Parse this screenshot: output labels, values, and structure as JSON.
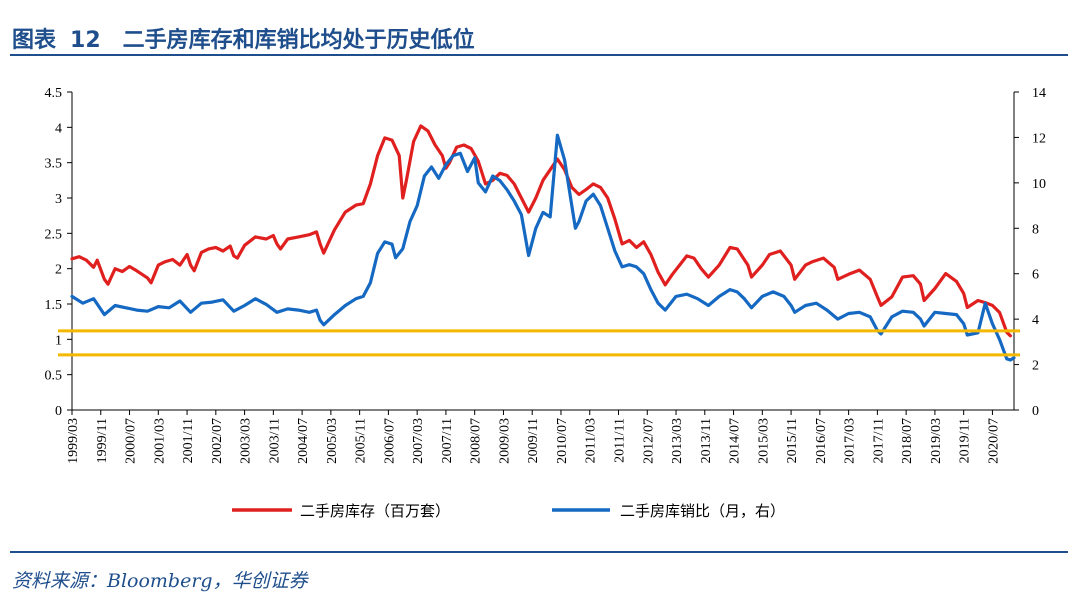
{
  "header": {
    "label": "图表",
    "number": "12",
    "title": "二手房库存和库销比均处于历史低位"
  },
  "footer": {
    "source": "资料来源：Bloomberg，华创证券"
  },
  "colors": {
    "inventory": "#e0201f",
    "ratio": "#1569c2",
    "reference": "#f5b800",
    "accent": "#1f4e8c"
  },
  "chart_data": {
    "type": "line",
    "title": "二手房库存和库销比均处于历史低位",
    "x_tick_labels": [
      "1999/03",
      "1999/11",
      "2000/07",
      "2001/03",
      "2001/11",
      "2002/07",
      "2003/03",
      "2003/11",
      "2004/07",
      "2005/03",
      "2005/11",
      "2006/07",
      "2007/03",
      "2007/11",
      "2008/07",
      "2009/03",
      "2009/11",
      "2010/07",
      "2011/03",
      "2011/11",
      "2012/07",
      "2013/03",
      "2013/11",
      "2014/07",
      "2015/03",
      "2015/11",
      "2016/07",
      "2017/03",
      "2017/11",
      "2018/07",
      "2019/03",
      "2019/11",
      "2020/07"
    ],
    "x_range": [
      "1999/03",
      "2021/01"
    ],
    "y_left": {
      "min": 0,
      "max": 4.5,
      "ticks": [
        "0",
        "0.5",
        "1",
        "1.5",
        "2",
        "2.5",
        "3",
        "3.5",
        "4",
        "4.5"
      ]
    },
    "y_right": {
      "min": 0,
      "max": 14,
      "ticks": [
        "0",
        "2",
        "4",
        "6",
        "8",
        "10",
        "12",
        "14"
      ]
    },
    "reference_lines_left": [
      1.12,
      0.78
    ],
    "series": [
      {
        "name": "二手房库存（百万套）",
        "axis": "left",
        "points": [
          [
            "1999/03",
            2.14
          ],
          [
            "1999/05",
            2.17
          ],
          [
            "1999/07",
            2.12
          ],
          [
            "1999/09",
            2.02
          ],
          [
            "1999/10",
            2.12
          ],
          [
            "1999/12",
            1.85
          ],
          [
            "2000/01",
            1.78
          ],
          [
            "2000/03",
            2.0
          ],
          [
            "2000/05",
            1.96
          ],
          [
            "2000/07",
            2.03
          ],
          [
            "2000/09",
            1.97
          ],
          [
            "2000/12",
            1.87
          ],
          [
            "2001/01",
            1.8
          ],
          [
            "2001/03",
            2.05
          ],
          [
            "2001/05",
            2.1
          ],
          [
            "2001/07",
            2.13
          ],
          [
            "2001/09",
            2.05
          ],
          [
            "2001/11",
            2.2
          ],
          [
            "2001/12",
            2.05
          ],
          [
            "2002/01",
            1.97
          ],
          [
            "2002/03",
            2.23
          ],
          [
            "2002/05",
            2.28
          ],
          [
            "2002/07",
            2.3
          ],
          [
            "2002/09",
            2.25
          ],
          [
            "2002/11",
            2.32
          ],
          [
            "2002/12",
            2.18
          ],
          [
            "2003/01",
            2.15
          ],
          [
            "2003/03",
            2.33
          ],
          [
            "2003/06",
            2.45
          ],
          [
            "2003/09",
            2.42
          ],
          [
            "2003/11",
            2.47
          ],
          [
            "2003/12",
            2.35
          ],
          [
            "2004/01",
            2.28
          ],
          [
            "2004/03",
            2.42
          ],
          [
            "2004/06",
            2.45
          ],
          [
            "2004/09",
            2.48
          ],
          [
            "2004/11",
            2.52
          ],
          [
            "2004/12",
            2.35
          ],
          [
            "2005/01",
            2.22
          ],
          [
            "2005/04",
            2.55
          ],
          [
            "2005/07",
            2.8
          ],
          [
            "2005/10",
            2.9
          ],
          [
            "2005/12",
            2.92
          ],
          [
            "2006/02",
            3.2
          ],
          [
            "2006/04",
            3.6
          ],
          [
            "2006/06",
            3.85
          ],
          [
            "2006/08",
            3.82
          ],
          [
            "2006/10",
            3.6
          ],
          [
            "2006/11",
            3.0
          ],
          [
            "2006/12",
            3.25
          ],
          [
            "2007/02",
            3.8
          ],
          [
            "2007/04",
            4.02
          ],
          [
            "2007/06",
            3.95
          ],
          [
            "2007/08",
            3.75
          ],
          [
            "2007/10",
            3.6
          ],
          [
            "2007/11",
            3.42
          ],
          [
            "2007/12",
            3.5
          ],
          [
            "2008/02",
            3.72
          ],
          [
            "2008/04",
            3.75
          ],
          [
            "2008/06",
            3.7
          ],
          [
            "2008/08",
            3.52
          ],
          [
            "2008/10",
            3.2
          ],
          [
            "2008/12",
            3.25
          ],
          [
            "2009/02",
            3.35
          ],
          [
            "2009/04",
            3.32
          ],
          [
            "2009/06",
            3.2
          ],
          [
            "2009/08",
            3.0
          ],
          [
            "2009/10",
            2.8
          ],
          [
            "2009/12",
            3.0
          ],
          [
            "2010/02",
            3.25
          ],
          [
            "2010/04",
            3.4
          ],
          [
            "2010/06",
            3.55
          ],
          [
            "2010/08",
            3.4
          ],
          [
            "2010/10",
            3.15
          ],
          [
            "2010/12",
            3.05
          ],
          [
            "2011/02",
            3.12
          ],
          [
            "2011/04",
            3.2
          ],
          [
            "2011/06",
            3.15
          ],
          [
            "2011/08",
            3.0
          ],
          [
            "2011/10",
            2.7
          ],
          [
            "2011/12",
            2.35
          ],
          [
            "2012/02",
            2.4
          ],
          [
            "2012/04",
            2.3
          ],
          [
            "2012/06",
            2.38
          ],
          [
            "2012/08",
            2.2
          ],
          [
            "2012/10",
            1.95
          ],
          [
            "2012/12",
            1.77
          ],
          [
            "2013/02",
            1.92
          ],
          [
            "2013/04",
            2.05
          ],
          [
            "2013/06",
            2.18
          ],
          [
            "2013/08",
            2.15
          ],
          [
            "2013/10",
            2.0
          ],
          [
            "2013/12",
            1.88
          ],
          [
            "2014/03",
            2.05
          ],
          [
            "2014/06",
            2.3
          ],
          [
            "2014/08",
            2.28
          ],
          [
            "2014/11",
            2.05
          ],
          [
            "2014/12",
            1.88
          ],
          [
            "2015/03",
            2.05
          ],
          [
            "2015/05",
            2.2
          ],
          [
            "2015/08",
            2.25
          ],
          [
            "2015/11",
            2.05
          ],
          [
            "2015/12",
            1.85
          ],
          [
            "2016/03",
            2.05
          ],
          [
            "2016/05",
            2.1
          ],
          [
            "2016/08",
            2.15
          ],
          [
            "2016/11",
            2.02
          ],
          [
            "2016/12",
            1.85
          ],
          [
            "2017/03",
            1.92
          ],
          [
            "2017/06",
            1.98
          ],
          [
            "2017/09",
            1.85
          ],
          [
            "2017/11",
            1.6
          ],
          [
            "2017/12",
            1.48
          ],
          [
            "2018/03",
            1.6
          ],
          [
            "2018/06",
            1.88
          ],
          [
            "2018/09",
            1.9
          ],
          [
            "2018/11",
            1.78
          ],
          [
            "2018/12",
            1.55
          ],
          [
            "2019/03",
            1.72
          ],
          [
            "2019/06",
            1.93
          ],
          [
            "2019/09",
            1.82
          ],
          [
            "2019/11",
            1.65
          ],
          [
            "2019/12",
            1.45
          ],
          [
            "2020/03",
            1.55
          ],
          [
            "2020/05",
            1.52
          ],
          [
            "2020/07",
            1.48
          ],
          [
            "2020/09",
            1.38
          ],
          [
            "2020/11",
            1.1
          ],
          [
            "2020/12",
            1.05
          ]
        ]
      },
      {
        "name": "二手房库销比（月，右）",
        "axis": "right",
        "points": [
          [
            "1999/03",
            5.0
          ],
          [
            "1999/06",
            4.7
          ],
          [
            "1999/09",
            4.9
          ],
          [
            "1999/12",
            4.2
          ],
          [
            "2000/03",
            4.6
          ],
          [
            "2000/06",
            4.5
          ],
          [
            "2000/09",
            4.4
          ],
          [
            "2000/12",
            4.35
          ],
          [
            "2001/03",
            4.55
          ],
          [
            "2001/06",
            4.5
          ],
          [
            "2001/09",
            4.8
          ],
          [
            "2001/12",
            4.3
          ],
          [
            "2002/03",
            4.7
          ],
          [
            "2002/06",
            4.75
          ],
          [
            "2002/09",
            4.85
          ],
          [
            "2002/12",
            4.35
          ],
          [
            "2003/03",
            4.6
          ],
          [
            "2003/06",
            4.9
          ],
          [
            "2003/09",
            4.65
          ],
          [
            "2003/12",
            4.3
          ],
          [
            "2004/03",
            4.45
          ],
          [
            "2004/06",
            4.4
          ],
          [
            "2004/09",
            4.3
          ],
          [
            "2004/11",
            4.4
          ],
          [
            "2004/12",
            3.95
          ],
          [
            "2005/01",
            3.75
          ],
          [
            "2005/04",
            4.2
          ],
          [
            "2005/07",
            4.6
          ],
          [
            "2005/10",
            4.9
          ],
          [
            "2005/12",
            5.0
          ],
          [
            "2006/02",
            5.6
          ],
          [
            "2006/04",
            6.9
          ],
          [
            "2006/06",
            7.4
          ],
          [
            "2006/08",
            7.3
          ],
          [
            "2006/09",
            6.7
          ],
          [
            "2006/11",
            7.1
          ],
          [
            "2007/01",
            8.3
          ],
          [
            "2007/03",
            9.0
          ],
          [
            "2007/05",
            10.3
          ],
          [
            "2007/07",
            10.7
          ],
          [
            "2007/09",
            10.2
          ],
          [
            "2007/11",
            10.8
          ],
          [
            "2008/01",
            11.2
          ],
          [
            "2008/03",
            11.3
          ],
          [
            "2008/05",
            10.5
          ],
          [
            "2008/07",
            11.1
          ],
          [
            "2008/08",
            10.0
          ],
          [
            "2008/10",
            9.6
          ],
          [
            "2008/12",
            10.3
          ],
          [
            "2009/02",
            10.1
          ],
          [
            "2009/04",
            9.7
          ],
          [
            "2009/06",
            9.2
          ],
          [
            "2009/08",
            8.6
          ],
          [
            "2009/10",
            6.8
          ],
          [
            "2009/12",
            8.0
          ],
          [
            "2010/02",
            8.7
          ],
          [
            "2010/04",
            8.5
          ],
          [
            "2010/06",
            12.1
          ],
          [
            "2010/08",
            11.0
          ],
          [
            "2010/10",
            9.0
          ],
          [
            "2010/11",
            8.0
          ],
          [
            "2010/12",
            8.3
          ],
          [
            "2011/02",
            9.2
          ],
          [
            "2011/04",
            9.5
          ],
          [
            "2011/06",
            9.0
          ],
          [
            "2011/08",
            8.0
          ],
          [
            "2011/10",
            7.0
          ],
          [
            "2011/12",
            6.3
          ],
          [
            "2012/02",
            6.4
          ],
          [
            "2012/04",
            6.3
          ],
          [
            "2012/06",
            6.0
          ],
          [
            "2012/08",
            5.3
          ],
          [
            "2012/10",
            4.7
          ],
          [
            "2012/12",
            4.4
          ],
          [
            "2013/03",
            5.0
          ],
          [
            "2013/06",
            5.1
          ],
          [
            "2013/09",
            4.9
          ],
          [
            "2013/12",
            4.6
          ],
          [
            "2014/03",
            5.0
          ],
          [
            "2014/06",
            5.3
          ],
          [
            "2014/08",
            5.2
          ],
          [
            "2014/10",
            4.9
          ],
          [
            "2014/12",
            4.5
          ],
          [
            "2015/03",
            5.0
          ],
          [
            "2015/06",
            5.2
          ],
          [
            "2015/09",
            5.0
          ],
          [
            "2015/11",
            4.6
          ],
          [
            "2015/12",
            4.3
          ],
          [
            "2016/03",
            4.6
          ],
          [
            "2016/06",
            4.7
          ],
          [
            "2016/09",
            4.4
          ],
          [
            "2016/12",
            4.0
          ],
          [
            "2017/03",
            4.25
          ],
          [
            "2017/06",
            4.3
          ],
          [
            "2017/09",
            4.1
          ],
          [
            "2017/11",
            3.5
          ],
          [
            "2017/12",
            3.35
          ],
          [
            "2018/03",
            4.1
          ],
          [
            "2018/06",
            4.35
          ],
          [
            "2018/09",
            4.3
          ],
          [
            "2018/11",
            4.0
          ],
          [
            "2018/12",
            3.7
          ],
          [
            "2019/03",
            4.3
          ],
          [
            "2019/06",
            4.25
          ],
          [
            "2019/09",
            4.2
          ],
          [
            "2019/11",
            3.8
          ],
          [
            "2019/12",
            3.3
          ],
          [
            "2020/03",
            3.4
          ],
          [
            "2020/05",
            4.7
          ],
          [
            "2020/07",
            3.8
          ],
          [
            "2020/09",
            3.1
          ],
          [
            "2020/11",
            2.25
          ],
          [
            "2020/12",
            2.2
          ],
          [
            "2021/01",
            2.3
          ]
        ]
      }
    ]
  }
}
